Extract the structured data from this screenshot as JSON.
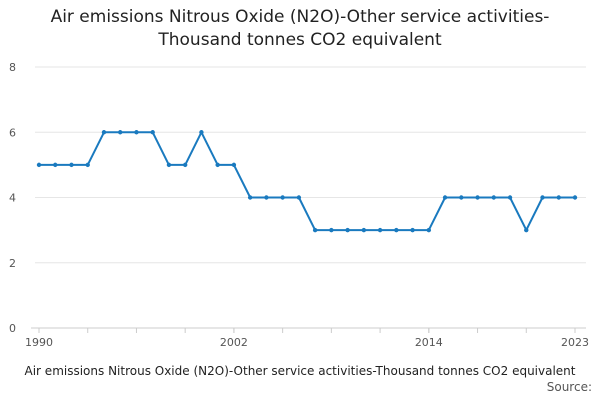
{
  "chart_data": {
    "type": "line",
    "title": "Air emissions Nitrous Oxide (N2O)-Other service activities-Thousand tonnes CO2 equivalent",
    "title_lines": [
      "Air emissions Nitrous Oxide (N2O)-Other service activities-",
      "Thousand tonnes CO2 equivalent"
    ],
    "xlabel": "Air emissions Nitrous Oxide (N2O)-Other service activities-Thousand tonnes CO2 equivalent",
    "ylabel": "",
    "x": [
      1990,
      1991,
      1992,
      1993,
      1994,
      1995,
      1996,
      1997,
      1998,
      1999,
      2000,
      2001,
      2002,
      2003,
      2004,
      2005,
      2006,
      2007,
      2008,
      2009,
      2010,
      2011,
      2012,
      2013,
      2014,
      2015,
      2016,
      2017,
      2018,
      2019,
      2020,
      2021,
      2022,
      2023
    ],
    "series": [
      {
        "values": [
          5,
          5,
          5,
          5,
          6,
          6,
          6,
          6,
          5,
          5,
          6,
          5,
          5,
          4,
          4,
          4,
          4,
          3,
          3,
          3,
          3,
          3,
          3,
          3,
          3,
          4,
          4,
          4,
          4,
          4,
          3,
          4,
          4,
          4
        ],
        "color": "#1a7abf"
      }
    ],
    "xlim": [
      1990,
      2023
    ],
    "ylim": [
      0,
      8
    ],
    "x_ticks": [
      1990,
      2002,
      2014,
      2023
    ],
    "y_ticks": [
      0,
      2,
      4,
      6,
      8
    ],
    "grid": true,
    "legend": "none"
  },
  "source_label": "Source:"
}
